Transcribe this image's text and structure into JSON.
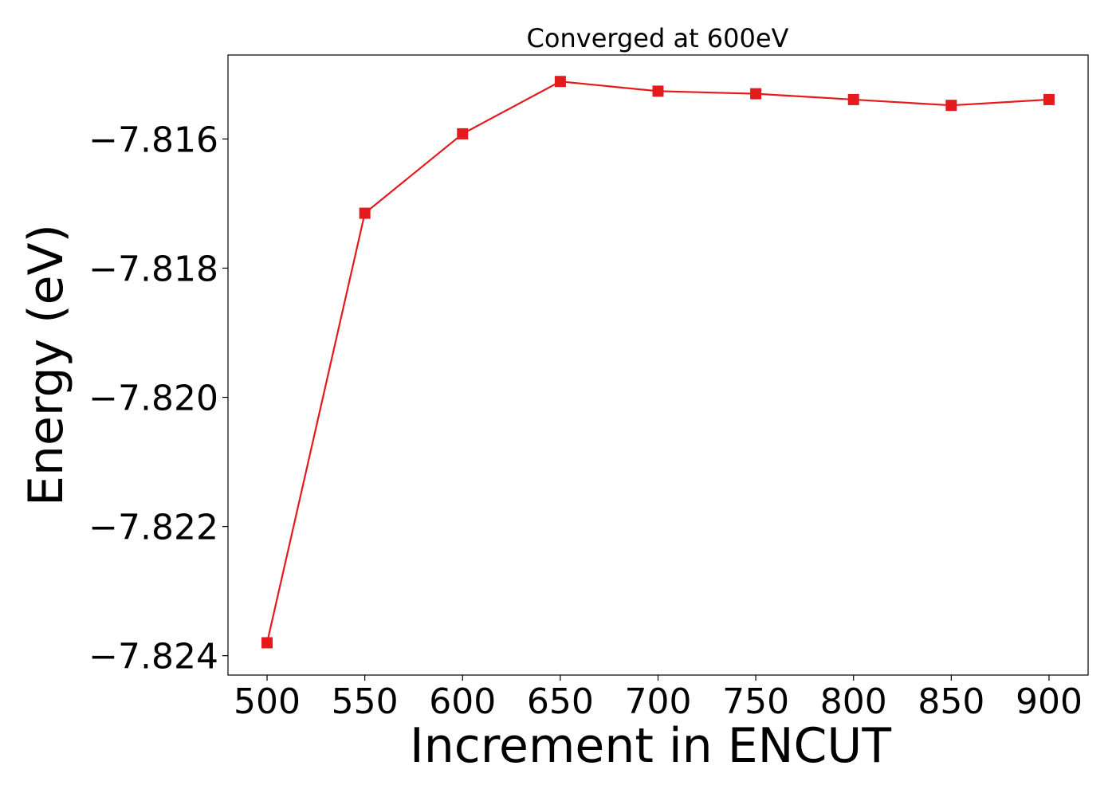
{
  "chart_data": {
    "type": "line",
    "title": "Converged at 600eV",
    "xlabel": "Increment in ENCUT",
    "ylabel": "Energy (eV)",
    "xlim": [
      480,
      920
    ],
    "ylim": [
      -7.8243,
      -7.8147
    ],
    "x_ticks": [
      500,
      550,
      600,
      650,
      700,
      750,
      800,
      850,
      900
    ],
    "x_tick_labels": [
      "500",
      "550",
      "600",
      "650",
      "700",
      "750",
      "800",
      "850",
      "900"
    ],
    "y_ticks": [
      -7.824,
      -7.822,
      -7.82,
      -7.818,
      -7.816
    ],
    "y_tick_labels": [
      "−7.824",
      "−7.822",
      "−7.820",
      "−7.818",
      "−7.816"
    ],
    "grid": false,
    "series": [
      {
        "color": "#e41a1c",
        "marker": "square",
        "x": [
          500,
          550,
          600,
          650,
          700,
          750,
          800,
          850,
          900
        ],
        "y": [
          -7.8238,
          -7.81715,
          -7.81592,
          -7.81511,
          -7.81526,
          -7.8153,
          -7.81539,
          -7.81548,
          -7.81539
        ]
      }
    ]
  }
}
